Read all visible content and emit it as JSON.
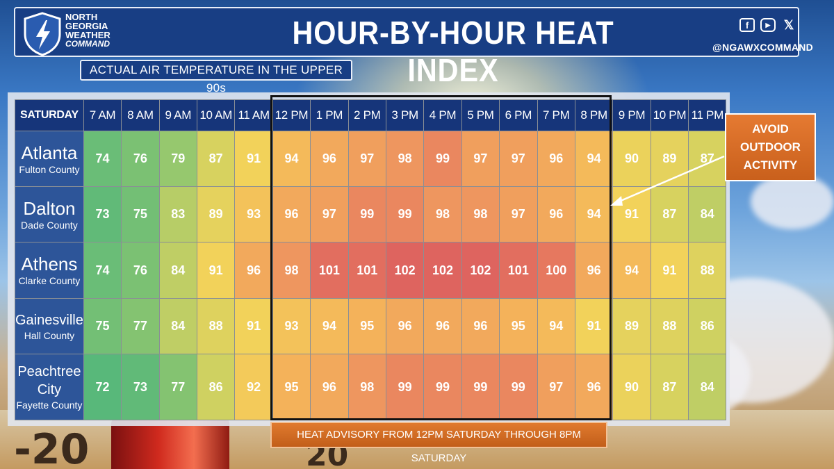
{
  "header": {
    "logo_line1": "NORTH",
    "logo_line2": "GEORGIA",
    "logo_line3": "WEATHER",
    "logo_line4": "COMMAND",
    "title": "HOUR-BY-HOUR HEAT INDEX",
    "handle": "@NGAWXCOMMAND",
    "social_icons": [
      "facebook-icon",
      "youtube-icon",
      "x-icon"
    ]
  },
  "subtitle": "ACTUAL AIR TEMPERATURE IN THE UPPER 90s",
  "table": {
    "corner_label": "SATURDAY",
    "hours": [
      "7 AM",
      "8 AM",
      "9 AM",
      "10 AM",
      "11 AM",
      "12 PM",
      "1 PM",
      "2 PM",
      "3 PM",
      "4 PM",
      "5 PM",
      "6 PM",
      "7 PM",
      "8 PM",
      "9 PM",
      "10 PM",
      "11 PM"
    ],
    "rows": [
      {
        "city": "Atlanta",
        "county": "Fulton County",
        "values": [
          "74",
          "76",
          "79",
          "87",
          "91",
          "94",
          "96",
          "97",
          "98",
          "99",
          "97",
          "97",
          "96",
          "94",
          "90",
          "89",
          "87"
        ]
      },
      {
        "city": "Dalton",
        "county": "Dade County",
        "values": [
          "73",
          "75",
          "83",
          "89",
          "93",
          "96",
          "97",
          "99",
          "99",
          "98",
          "98",
          "97",
          "96",
          "94",
          "91",
          "87",
          "84"
        ]
      },
      {
        "city": "Athens",
        "county": "Clarke County",
        "values": [
          "74",
          "76",
          "84",
          "91",
          "96",
          "98",
          "101",
          "101",
          "102",
          "102",
          "102",
          "101",
          "100",
          "96",
          "94",
          "91",
          "88"
        ]
      },
      {
        "city": "Gainesville",
        "county": "Hall County",
        "values": [
          "75",
          "77",
          "84",
          "88",
          "91",
          "93",
          "94",
          "95",
          "96",
          "96",
          "96",
          "95",
          "94",
          "91",
          "89",
          "88",
          "86"
        ]
      },
      {
        "city_line1": "Peachtree",
        "city_line2": "City",
        "county": "Fayette County",
        "values": [
          "72",
          "73",
          "77",
          "86",
          "92",
          "95",
          "96",
          "98",
          "99",
          "99",
          "99",
          "99",
          "97",
          "96",
          "90",
          "87",
          "84"
        ]
      }
    ]
  },
  "advisory": "HEAT ADVISORY FROM 12PM SATURDAY THROUGH 8PM SATURDAY",
  "callout": {
    "line1": "AVOID",
    "line2": "OUTDOOR",
    "line3": "ACTIVITY"
  },
  "background_thermometer": [
    "-20",
    "20"
  ],
  "colors": {
    "header_blue": "#183e84",
    "cool_green": "#5bb97a",
    "warm_yellow": "#f2d35a",
    "hot_orange": "#f0a05a",
    "extreme_red": "#e06a5a",
    "callout_orange": "#d86a24"
  }
}
